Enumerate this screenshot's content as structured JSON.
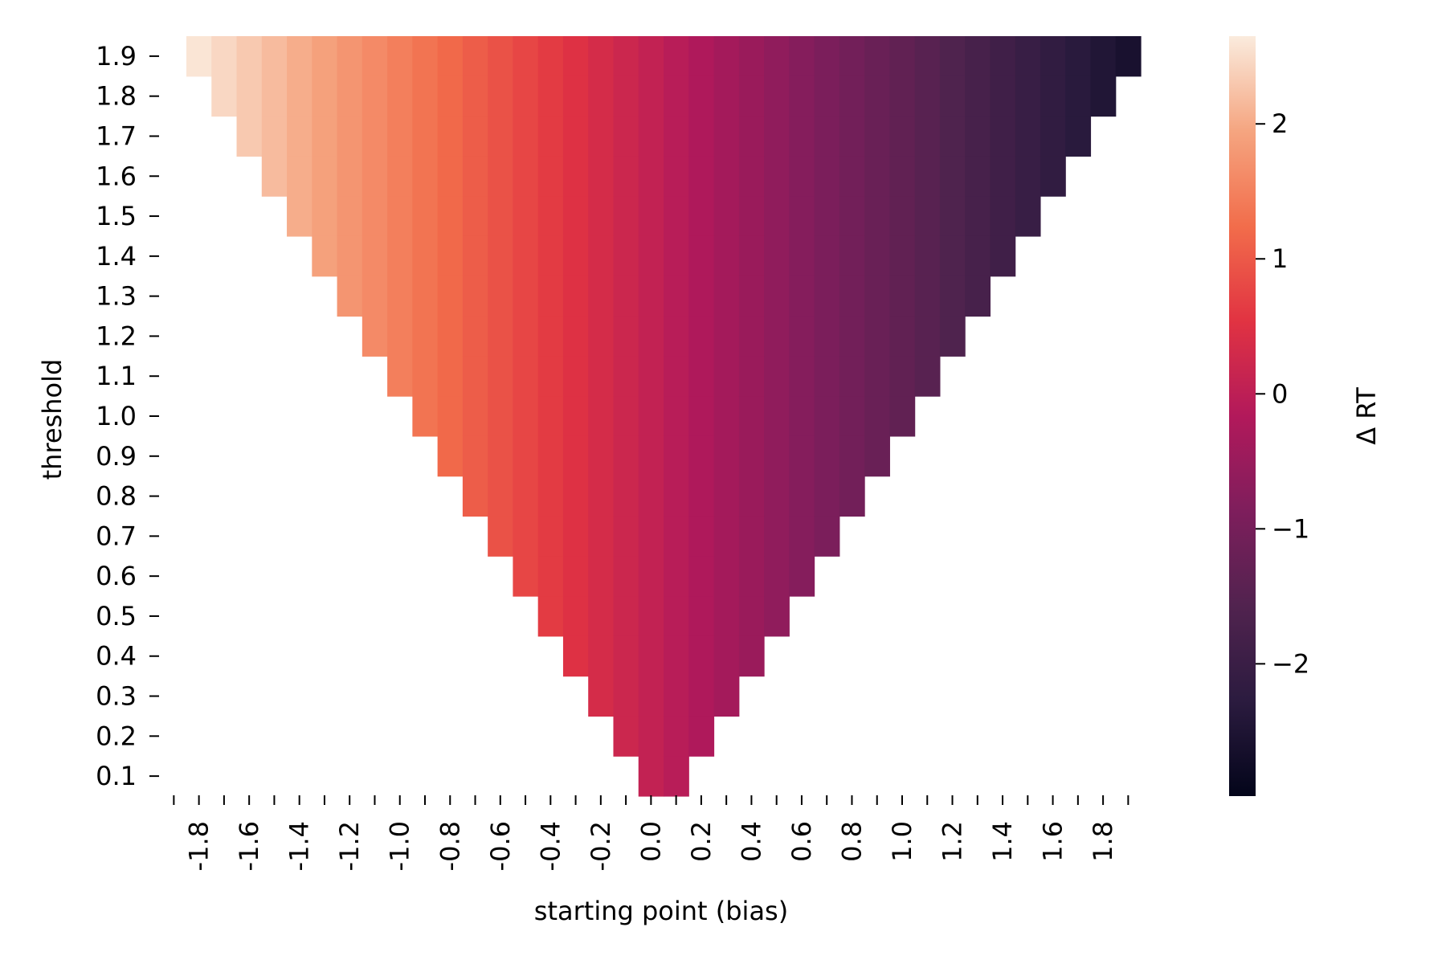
{
  "chart_data": {
    "type": "heatmap",
    "xlabel": "starting point (bias)",
    "ylabel": "threshold",
    "colorbar_label": "Δ RT",
    "x_ticks": [
      "-1.8",
      "-1.6",
      "-1.4",
      "-1.2",
      "-1.0",
      "-0.8",
      "-0.6",
      "-0.4",
      "-0.2",
      "0.0",
      "0.2",
      "0.4",
      "0.6",
      "0.8",
      "1.0",
      "1.2",
      "1.4",
      "1.6",
      "1.8"
    ],
    "y_ticks": [
      "1.9",
      "1.8",
      "1.7",
      "1.6",
      "1.5",
      "1.4",
      "1.3",
      "1.2",
      "1.1",
      "1.0",
      "0.9",
      "0.8",
      "0.7",
      "0.6",
      "0.5",
      "0.4",
      "0.3",
      "0.2",
      "0.1"
    ],
    "x_range": [
      -1.85,
      1.85
    ],
    "x_step": 0.1,
    "thresholds": [
      1.9,
      1.8,
      1.7,
      1.6,
      1.5,
      1.4,
      1.3,
      1.2,
      1.1,
      1.0,
      0.9,
      0.8,
      0.7,
      0.6,
      0.5,
      0.4,
      0.3,
      0.2,
      0.1
    ],
    "colorbar_range": [
      -2.98,
      2.65
    ],
    "colorbar_ticks": [
      {
        "value": 2,
        "label": "2"
      },
      {
        "value": 1,
        "label": "1"
      },
      {
        "value": 0,
        "label": "0"
      },
      {
        "value": -1,
        "label": "−1"
      },
      {
        "value": -2,
        "label": "−2"
      }
    ],
    "colormap": "rocket",
    "value_model": "ΔRT ≈ -1.4 × starting point (bias); cells present only where |bias| < threshold",
    "grid": false,
    "legend": "colorbar-right"
  }
}
